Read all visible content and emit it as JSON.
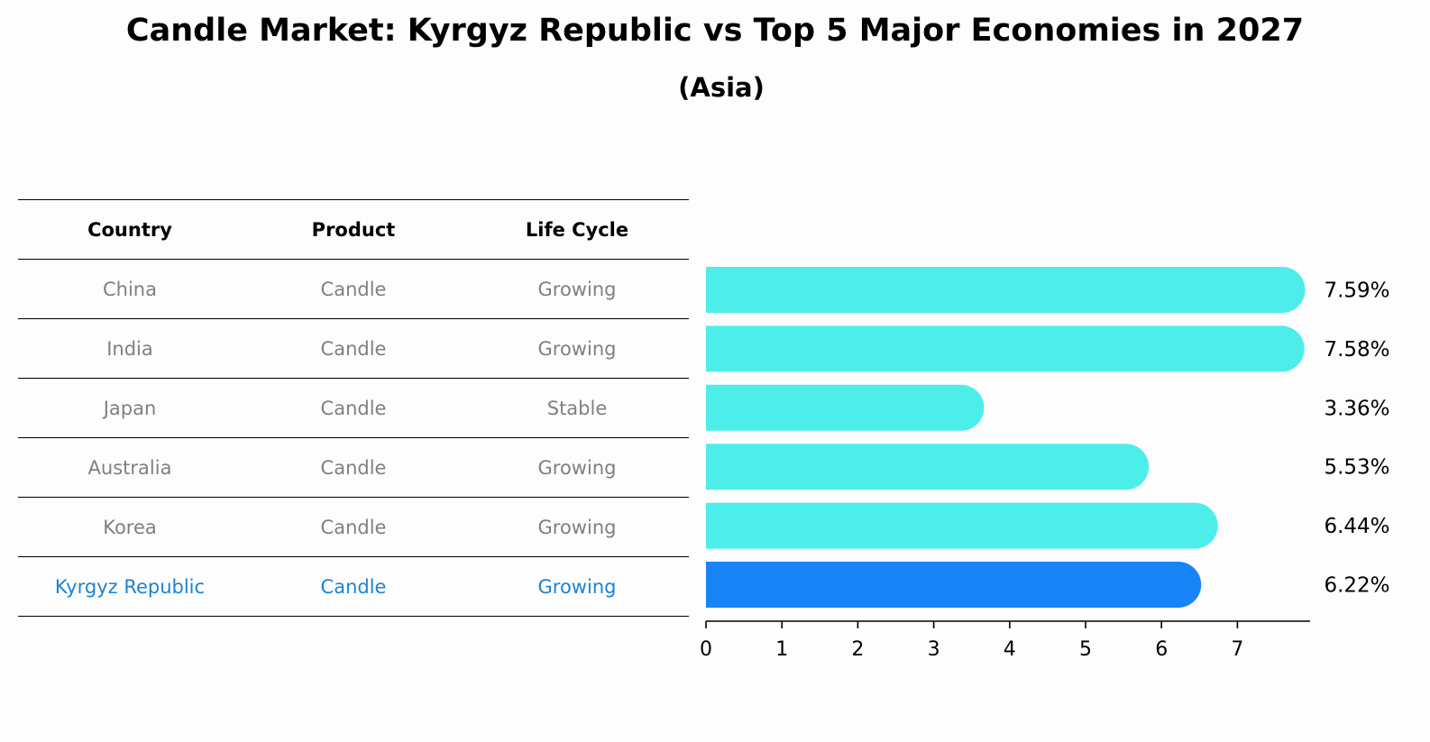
{
  "title": "Candle Market: Kyrgyz Republic vs Top 5 Major Economies in 2027",
  "subtitle": "(Asia)",
  "table": {
    "headers": [
      "Country",
      "Product",
      "Life Cycle"
    ],
    "rows": [
      [
        "China",
        "Candle",
        "Growing"
      ],
      [
        "India",
        "Candle",
        "Growing"
      ],
      [
        "Japan",
        "Candle",
        "Stable"
      ],
      [
        "Australia",
        "Candle",
        "Growing"
      ],
      [
        "Korea",
        "Candle",
        "Growing"
      ],
      [
        "Kyrgyz Republic",
        "Candle",
        "Growing"
      ]
    ],
    "highlight_row": 5
  },
  "colors": {
    "bar": "#4deeea",
    "highlight_bar": "#1984f5",
    "highlight_text": "#1a84d6",
    "muted_text": "#808080"
  },
  "chart_data": {
    "type": "bar",
    "orientation": "horizontal",
    "categories": [
      "China",
      "India",
      "Japan",
      "Australia",
      "Korea",
      "Kyrgyz Republic"
    ],
    "values": [
      7.59,
      7.58,
      3.36,
      5.53,
      6.44,
      6.22
    ],
    "value_labels": [
      "7.59%",
      "7.58%",
      "3.36%",
      "5.53%",
      "6.44%",
      "6.22%"
    ],
    "xlim": [
      0,
      7.97
    ],
    "xticks": [
      0,
      1,
      2,
      3,
      4,
      5,
      6,
      7
    ],
    "grid": false
  }
}
